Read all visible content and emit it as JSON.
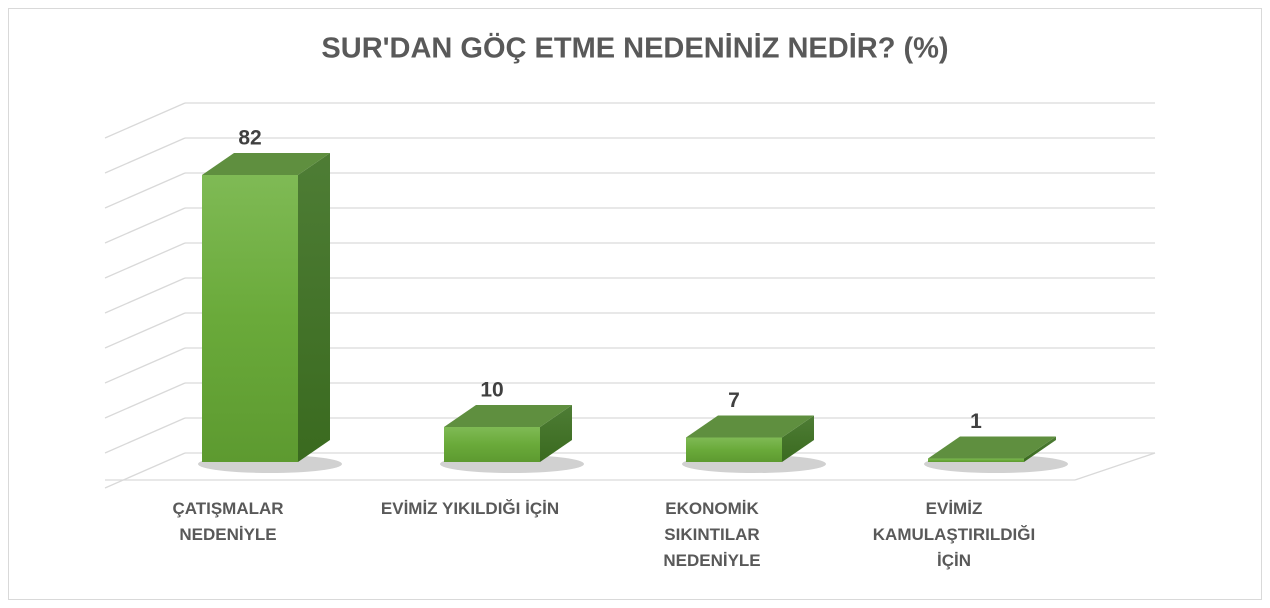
{
  "chart_data": {
    "type": "bar3d",
    "title": "SUR'DAN GÖÇ ETME NEDENİNİZ NEDİR? (%)",
    "categories": [
      "ÇATIŞMALAR\nNEDENİYLE",
      "EVİMİZ YIKILDIĞI İÇİN",
      "EKONOMİK\nSIKINTILAR\nNEDENİYLE",
      "EVİMİZ\nKAMULAŞTIRILDIĞI\nİÇİN"
    ],
    "values": [
      82,
      10,
      7,
      1
    ],
    "color": "#6aaa3a",
    "ylim": [
      0,
      100
    ],
    "yticks": [
      0,
      10,
      20,
      30,
      40,
      50,
      60,
      70,
      80,
      90,
      100
    ],
    "grid": true
  }
}
